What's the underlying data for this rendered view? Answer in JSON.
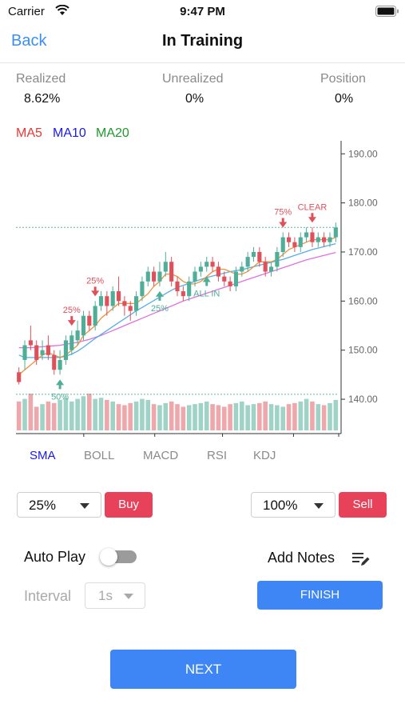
{
  "status_bar": {
    "carrier": "Carrier",
    "time": "9:47 PM"
  },
  "nav": {
    "back_label": "Back",
    "title": "In Training"
  },
  "stats": [
    {
      "label": "Realized",
      "value": "8.62%"
    },
    {
      "label": "Unrealized",
      "value": "0%"
    },
    {
      "label": "Position",
      "value": "0%"
    }
  ],
  "ma_legend": [
    {
      "label": "MA5",
      "color": "#e53935"
    },
    {
      "label": "MA10",
      "color": "#1a1ae6"
    },
    {
      "label": "MA20",
      "color": "#1e9a2e"
    }
  ],
  "indicator_tabs": [
    "SMA",
    "BOLL",
    "MACD",
    "RSI",
    "KDJ"
  ],
  "active_indicator": "SMA",
  "trade": {
    "buy_percent": "25%",
    "buy_label": "Buy",
    "sell_percent": "100%",
    "sell_label": "Sell"
  },
  "controls": {
    "auto_play_label": "Auto Play",
    "add_notes_label": "Add Notes",
    "interval_label": "Interval",
    "interval_value": "1s",
    "finish_label": "FINISH",
    "next_label": "NEXT"
  },
  "colors": {
    "up": "#4fae98",
    "down": "#e0505a",
    "accent": "#3e86f5",
    "ma5": "#f0903a",
    "ma10": "#55aee6",
    "ma20": "#e070e0"
  },
  "chart_data": {
    "type": "candlestick",
    "ylim": [
      133,
      192
    ],
    "y_ticks": [
      "190.00",
      "180.00",
      "170.00",
      "160.00",
      "150.00",
      "140.00"
    ],
    "y_tick_values": [
      190,
      180,
      170,
      160,
      150,
      140
    ],
    "reference_line": 175,
    "volume_reference": 141,
    "candles": [
      [
        145.5,
        143.5,
        146.5,
        143
      ],
      [
        148,
        151,
        152,
        146
      ],
      [
        152,
        151,
        155,
        150
      ],
      [
        151,
        148,
        152,
        147
      ],
      [
        149,
        150,
        152,
        148
      ],
      [
        151,
        149,
        153,
        148
      ],
      [
        149,
        146,
        150,
        145
      ],
      [
        146,
        148,
        150,
        145
      ],
      [
        148,
        152,
        153,
        147
      ],
      [
        150,
        153,
        154,
        149
      ],
      [
        152,
        154,
        156,
        151
      ],
      [
        153,
        157,
        158,
        152
      ],
      [
        157,
        155,
        158,
        154
      ],
      [
        155,
        159,
        160,
        154
      ],
      [
        159,
        161,
        162,
        158
      ],
      [
        161,
        159,
        162,
        157
      ],
      [
        159,
        162,
        163,
        158
      ],
      [
        162,
        160,
        165,
        159
      ],
      [
        160,
        159,
        161,
        157
      ],
      [
        159,
        158,
        160,
        156
      ],
      [
        158,
        161,
        162,
        157
      ],
      [
        161,
        164,
        165,
        160
      ],
      [
        164,
        166,
        167,
        163
      ],
      [
        166,
        164,
        167,
        163
      ],
      [
        164,
        166,
        168,
        163
      ],
      [
        166,
        168,
        170,
        165
      ],
      [
        168,
        164,
        169,
        163
      ],
      [
        164,
        162,
        165,
        161
      ],
      [
        162,
        161,
        163,
        160
      ],
      [
        161,
        164,
        165,
        160
      ],
      [
        164,
        166,
        167,
        163
      ],
      [
        166,
        167,
        168,
        165
      ],
      [
        167,
        168,
        169,
        166
      ],
      [
        168,
        167,
        169,
        166
      ],
      [
        167,
        165,
        168,
        164
      ],
      [
        165,
        164,
        166,
        163
      ],
      [
        164,
        163,
        165,
        162
      ],
      [
        163,
        166,
        167,
        162
      ],
      [
        166,
        167,
        168,
        165
      ],
      [
        167,
        169,
        170,
        166
      ],
      [
        169,
        170,
        171,
        168
      ],
      [
        170,
        168,
        171,
        167
      ],
      [
        168,
        166,
        169,
        165
      ],
      [
        166,
        167,
        168,
        165
      ],
      [
        167,
        170,
        171,
        166
      ],
      [
        170,
        173,
        174,
        169
      ],
      [
        173,
        172,
        174,
        171
      ],
      [
        172,
        171,
        173,
        170
      ],
      [
        171,
        173,
        174,
        170
      ],
      [
        173,
        174,
        175,
        172
      ],
      [
        174,
        172,
        175,
        171
      ],
      [
        172,
        173,
        174,
        171
      ],
      [
        173,
        172,
        174,
        171
      ],
      [
        172,
        173,
        174,
        171
      ],
      [
        173,
        175,
        176,
        172
      ]
    ],
    "ma5": [
      145,
      146,
      147,
      148,
      149,
      149.5,
      149,
      148.5,
      149,
      150,
      151,
      153,
      154,
      155,
      156.5,
      157.5,
      158.5,
      159.5,
      159.5,
      159.5,
      159.5,
      160.5,
      161.5,
      163,
      164,
      165.5,
      165.5,
      165,
      164,
      163.5,
      163.5,
      164,
      165,
      166,
      166.5,
      166.5,
      166,
      165.5,
      165.5,
      166,
      167,
      168,
      168,
      168,
      168.5,
      169.5,
      170.5,
      171,
      171.5,
      172,
      172.5,
      172.5,
      172.5,
      172.5,
      173
    ],
    "ma10": [
      149,
      148.5,
      148.5,
      148.5,
      148.5,
      148.5,
      148.5,
      148.5,
      148.8,
      149.2,
      149.8,
      150.6,
      151.5,
      152.4,
      153.2,
      154,
      154.8,
      155.6,
      156.4,
      157.2,
      158,
      158.7,
      159.4,
      160.1,
      160.8,
      161.5,
      162.2,
      162.8,
      163.2,
      163.6,
      164,
      164.4,
      164.8,
      165.1,
      165.4,
      165.7,
      166,
      166.2,
      166.4,
      166.7,
      167,
      167.3,
      167.6,
      167.9,
      168.2,
      168.5,
      168.9,
      169.3,
      169.7,
      170.1,
      170.5,
      170.8,
      171.1,
      171.4,
      171.7
    ],
    "ma20": [
      150.5,
      150.5,
      150.5,
      150.6,
      150.7,
      150.8,
      150.9,
      151,
      151.2,
      151.4,
      151.6,
      151.9,
      152.2,
      152.6,
      153,
      153.5,
      154,
      154.5,
      155,
      155.5,
      156,
      156.5,
      157,
      157.5,
      158,
      158.5,
      159,
      159.5,
      160,
      160.4,
      160.8,
      161.2,
      161.6,
      162,
      162.4,
      162.8,
      163.2,
      163.6,
      164,
      164.4,
      164.8,
      165.2,
      165.6,
      166,
      166.4,
      166.8,
      167.2,
      167.6,
      168,
      168.4,
      168.7,
      169,
      169.3,
      169.6,
      169.9
    ],
    "volume": [
      55,
      60,
      70,
      45,
      50,
      55,
      52,
      58,
      62,
      55,
      60,
      65,
      70,
      60,
      62,
      58,
      55,
      50,
      48,
      52,
      55,
      60,
      58,
      50,
      48,
      52,
      55,
      50,
      45,
      48,
      50,
      52,
      55,
      50,
      48,
      45,
      50,
      52,
      55,
      48,
      50,
      52,
      55,
      50,
      48,
      45,
      50,
      52,
      55,
      60,
      55,
      50,
      48,
      52,
      58
    ],
    "annotations": [
      {
        "label": "50%",
        "candle": 7,
        "type": "buy"
      },
      {
        "label": "25%",
        "candle": 9,
        "type": "sell"
      },
      {
        "label": "25%",
        "candle": 13,
        "type": "sell"
      },
      {
        "label": "25%",
        "candle": 24,
        "type": "buy"
      },
      {
        "label": "ALL IN",
        "candle": 32,
        "type": "buy"
      },
      {
        "label": "75%",
        "candle": 45,
        "type": "sell"
      },
      {
        "label": "CLEAR",
        "candle": 50,
        "type": "sell"
      }
    ]
  }
}
